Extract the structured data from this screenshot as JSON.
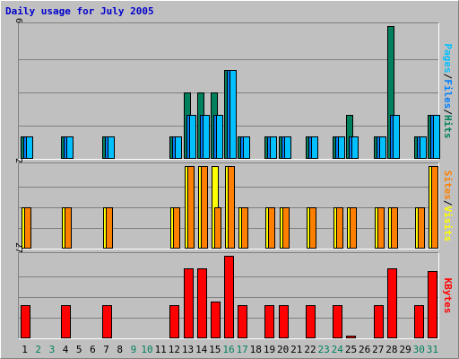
{
  "colors": {
    "background": "#C0C0C0",
    "title": "#0000CC",
    "hits": "#00805C",
    "files": "#0080FF",
    "pages": "#00C0FF",
    "visits": "#FFFF00",
    "sites": "#FF8000",
    "kbytes": "#FF0000",
    "weekend_label": "#00805C",
    "weekday_label": "#000000"
  },
  "chart_data": {
    "title": "Daily usage for July 2005",
    "type": "bar",
    "days": [
      "1",
      "2",
      "3",
      "4",
      "5",
      "6",
      "7",
      "8",
      "9",
      "10",
      "11",
      "12",
      "13",
      "14",
      "15",
      "16",
      "17",
      "18",
      "19",
      "20",
      "21",
      "22",
      "23",
      "24",
      "25",
      "26",
      "27",
      "28",
      "29",
      "30",
      "31"
    ],
    "weekend_days": [
      "2",
      "3",
      "9",
      "10",
      "16",
      "17",
      "23",
      "24",
      "30",
      "31"
    ],
    "panels": [
      {
        "id": "top",
        "ymax_label": "6",
        "ylim": [
          0,
          6
        ],
        "axis_labels": [
          {
            "text": "Pages",
            "color_key": "pages"
          },
          {
            "text": "/",
            "color_key": "weekday_label"
          },
          {
            "text": "Files",
            "color_key": "files"
          },
          {
            "text": "/",
            "color_key": "weekday_label"
          },
          {
            "text": "Hits",
            "color_key": "hits"
          }
        ],
        "series": [
          {
            "name": "Hits",
            "color_key": "hits",
            "values": [
              1,
              0,
              0,
              1,
              0,
              0,
              1,
              0,
              0,
              0,
              0,
              1,
              3,
              3,
              3,
              4,
              1,
              0,
              1,
              1,
              0,
              1,
              0,
              1,
              2,
              0,
              1,
              6,
              0,
              1,
              2
            ]
          },
          {
            "name": "Files",
            "color_key": "files",
            "values": [
              1,
              0,
              0,
              1,
              0,
              0,
              1,
              0,
              0,
              0,
              0,
              1,
              2,
              2,
              2,
              4,
              1,
              0,
              1,
              1,
              0,
              1,
              0,
              1,
              1,
              0,
              1,
              2,
              0,
              1,
              2
            ]
          },
          {
            "name": "Pages",
            "color_key": "pages",
            "values": [
              1,
              0,
              0,
              1,
              0,
              0,
              1,
              0,
              0,
              0,
              0,
              1,
              2,
              2,
              2,
              4,
              1,
              0,
              1,
              1,
              0,
              1,
              0,
              1,
              1,
              0,
              1,
              2,
              0,
              1,
              2
            ]
          }
        ]
      },
      {
        "id": "middle",
        "ymax_label": "2",
        "ylim": [
          0,
          2
        ],
        "axis_labels": [
          {
            "text": "Sites",
            "color_key": "sites"
          },
          {
            "text": "/",
            "color_key": "weekday_label"
          },
          {
            "text": "Visits",
            "color_key": "visits"
          }
        ],
        "series": [
          {
            "name": "Visits",
            "color_key": "visits",
            "values": [
              1,
              0,
              0,
              1,
              0,
              0,
              1,
              0,
              0,
              0,
              0,
              1,
              2,
              2,
              2,
              2,
              1,
              0,
              1,
              1,
              0,
              1,
              0,
              1,
              1,
              0,
              1,
              1,
              0,
              1,
              2
            ]
          },
          {
            "name": "Sites",
            "color_key": "sites",
            "values": [
              1,
              0,
              0,
              1,
              0,
              0,
              1,
              0,
              0,
              0,
              0,
              1,
              2,
              2,
              1,
              2,
              1,
              0,
              1,
              1,
              0,
              1,
              0,
              1,
              1,
              0,
              1,
              1,
              0,
              1,
              2
            ]
          }
        ]
      },
      {
        "id": "bottom",
        "ymax_label": "27",
        "ylim": [
          0,
          27
        ],
        "axis_labels": [
          {
            "text": "KBytes",
            "color_key": "kbytes"
          }
        ],
        "series": [
          {
            "name": "KBytes",
            "color_key": "kbytes",
            "values": [
              11,
              0,
              0,
              11,
              0,
              0,
              11,
              0,
              0,
              0,
              0,
              11,
              23,
              23,
              12,
              27,
              11,
              0,
              11,
              11,
              0,
              11,
              0,
              11,
              1,
              0,
              11,
              23,
              0,
              11,
              22
            ]
          }
        ]
      }
    ]
  }
}
